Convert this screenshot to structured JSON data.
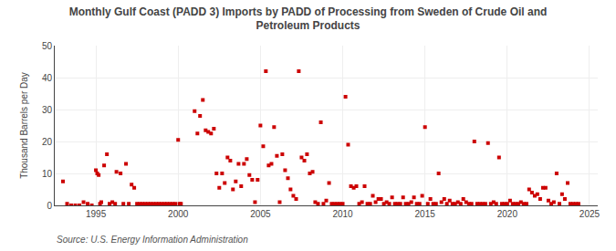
{
  "chart_data": {
    "type": "scatter",
    "title": "Monthly Gulf Coast (PADD 3) Imports by PADD of Processing from Sweden of Crude Oil and\nPetroleum Products",
    "ylabel": "Thousand Barrels per Day",
    "annotations": [
      "Source: U.S. Energy Information Administration"
    ],
    "color": "#cc0000",
    "marker": "square",
    "grid": true,
    "xlim": [
      1992.5,
      2025.5
    ],
    "xticks": [
      1995,
      2000,
      2005,
      2010,
      2015,
      2020,
      2025
    ],
    "ylim": [
      0,
      50
    ],
    "yticks": [
      0,
      10,
      20,
      30,
      40,
      50
    ],
    "x": [
      1993.0,
      1993.25,
      1993.5,
      1993.75,
      1994.0,
      1994.25,
      1994.5,
      1994.75,
      1995.0,
      1995.08,
      1995.17,
      1995.25,
      1995.33,
      1995.5,
      1995.67,
      1995.83,
      1996.0,
      1996.17,
      1996.25,
      1996.5,
      1996.67,
      1996.83,
      1997.0,
      1997.17,
      1997.33,
      1997.5,
      1997.67,
      1997.83,
      1998.0,
      1998.17,
      1998.33,
      1998.5,
      1998.67,
      1998.83,
      1999.0,
      1999.17,
      1999.33,
      1999.5,
      1999.67,
      1999.83,
      2000.0,
      2000.08,
      2000.17,
      2001.0,
      2001.17,
      2001.33,
      2001.5,
      2001.67,
      2001.83,
      2002.0,
      2002.17,
      2002.33,
      2002.5,
      2002.67,
      2002.83,
      2003.0,
      2003.17,
      2003.33,
      2003.5,
      2003.67,
      2003.83,
      2004.0,
      2004.17,
      2004.33,
      2004.5,
      2004.67,
      2004.83,
      2005.0,
      2005.17,
      2005.33,
      2005.5,
      2005.67,
      2005.83,
      2006.0,
      2006.17,
      2006.33,
      2006.5,
      2006.67,
      2006.83,
      2007.0,
      2007.17,
      2007.33,
      2007.5,
      2007.67,
      2007.83,
      2008.0,
      2008.17,
      2008.33,
      2008.5,
      2008.67,
      2008.83,
      2009.0,
      2009.17,
      2009.33,
      2009.5,
      2009.67,
      2009.83,
      2010.0,
      2010.17,
      2010.33,
      2010.5,
      2010.67,
      2010.83,
      2011.0,
      2011.17,
      2011.33,
      2011.5,
      2011.67,
      2011.83,
      2012.0,
      2012.17,
      2012.33,
      2012.5,
      2012.67,
      2012.83,
      2013.0,
      2013.17,
      2013.33,
      2013.5,
      2013.67,
      2013.83,
      2014.0,
      2014.17,
      2014.33,
      2014.5,
      2014.67,
      2014.83,
      2015.0,
      2015.17,
      2015.33,
      2015.5,
      2015.67,
      2015.83,
      2016.0,
      2016.17,
      2016.33,
      2016.5,
      2016.67,
      2016.83,
      2017.0,
      2017.17,
      2017.33,
      2017.5,
      2017.67,
      2017.83,
      2018.0,
      2018.17,
      2018.33,
      2018.5,
      2018.67,
      2018.83,
      2019.0,
      2019.17,
      2019.33,
      2019.5,
      2019.67,
      2019.83,
      2020.0,
      2020.17,
      2020.33,
      2020.5,
      2020.67,
      2020.83,
      2021.0,
      2021.17,
      2021.33,
      2021.5,
      2021.67,
      2021.83,
      2022.0,
      2022.17,
      2022.33,
      2022.5,
      2022.67,
      2022.83,
      2023.0,
      2023.17,
      2023.33,
      2023.5,
      2023.67,
      2023.83,
      2024.0,
      2024.17,
      2024.33
    ],
    "values": [
      7.5,
      0.5,
      0.0,
      0.0,
      0.0,
      1.0,
      0.5,
      0.0,
      11.0,
      10.0,
      9.5,
      0.5,
      1.0,
      12.5,
      16.0,
      0.5,
      1.0,
      0.5,
      10.5,
      10.0,
      0.5,
      13.0,
      0.5,
      6.5,
      5.5,
      0.5,
      0.5,
      0.5,
      0.5,
      0.5,
      0.5,
      0.5,
      0.5,
      0.5,
      0.5,
      0.5,
      0.5,
      0.5,
      0.5,
      0.5,
      20.5,
      0.5,
      0.5,
      29.5,
      22.5,
      28.0,
      33.0,
      23.5,
      23.0,
      22.5,
      24.0,
      10.0,
      5.5,
      10.0,
      7.0,
      15.0,
      14.0,
      5.0,
      7.5,
      13.0,
      6.0,
      13.0,
      14.5,
      9.5,
      8.0,
      1.0,
      8.0,
      25.0,
      18.5,
      42.0,
      12.5,
      13.0,
      24.5,
      15.5,
      1.0,
      16.0,
      11.0,
      8.5,
      5.0,
      3.0,
      2.0,
      42.0,
      15.0,
      14.0,
      16.0,
      10.0,
      10.5,
      1.0,
      0.5,
      26.0,
      0.5,
      1.5,
      7.0,
      0.5,
      0.5,
      0.5,
      0.5,
      0.5,
      34.0,
      19.0,
      6.0,
      5.5,
      6.0,
      0.5,
      1.0,
      6.0,
      0.5,
      0.5,
      3.0,
      1.0,
      2.0,
      2.0,
      0.5,
      1.0,
      0.5,
      2.5,
      0.5,
      0.5,
      0.5,
      2.5,
      0.5,
      0.5,
      1.0,
      2.5,
      0.5,
      0.5,
      3.0,
      24.5,
      0.5,
      2.0,
      0.5,
      0.5,
      10.0,
      1.0,
      2.0,
      0.5,
      1.5,
      0.5,
      0.5,
      1.0,
      0.5,
      2.0,
      1.0,
      0.5,
      0.5,
      20.0,
      0.5,
      0.5,
      0.5,
      0.5,
      19.5,
      0.5,
      1.0,
      0.5,
      15.0,
      0.5,
      0.5,
      0.5,
      1.5,
      0.5,
      0.5,
      0.5,
      1.0,
      0.5,
      0.5,
      5.0,
      4.0,
      3.0,
      3.5,
      2.0,
      5.5,
      5.5,
      1.5,
      0.5,
      1.0,
      10.0,
      0.5,
      3.5,
      2.0,
      7.0,
      0.5,
      0.5,
      0.5,
      0.5
    ]
  }
}
